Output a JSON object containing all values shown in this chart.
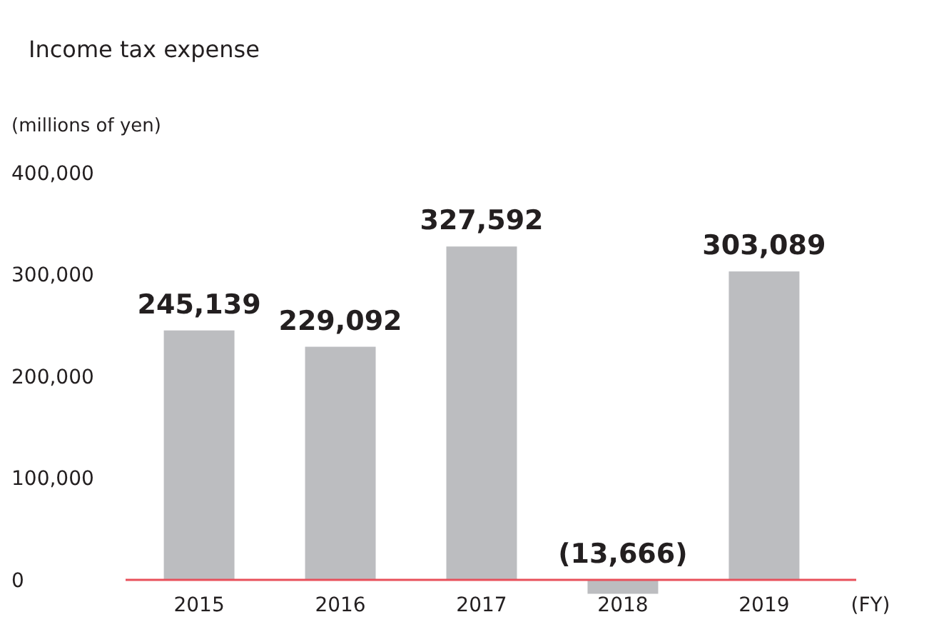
{
  "chart_data": {
    "type": "bar",
    "title": "Income tax expense",
    "ylabel": "(millions of yen)",
    "xlabel": "(FY)",
    "categories": [
      "2015",
      "2016",
      "2017",
      "2018",
      "2019"
    ],
    "values": [
      245139,
      229092,
      327592,
      -13666,
      303089
    ],
    "value_labels": [
      "245,139",
      "229,092",
      "327,592",
      "(13,666)",
      "303,089"
    ],
    "color": "#bcbdc0",
    "ylim": [
      -20000,
      400000
    ],
    "yticks": [
      {
        "value": 0,
        "label": "0"
      },
      {
        "value": 100000,
        "label": "100,000"
      },
      {
        "value": 200000,
        "label": "200,000"
      },
      {
        "value": 300000,
        "label": "300,000"
      },
      {
        "value": 400000,
        "label": "400,000"
      }
    ],
    "grid": false
  }
}
